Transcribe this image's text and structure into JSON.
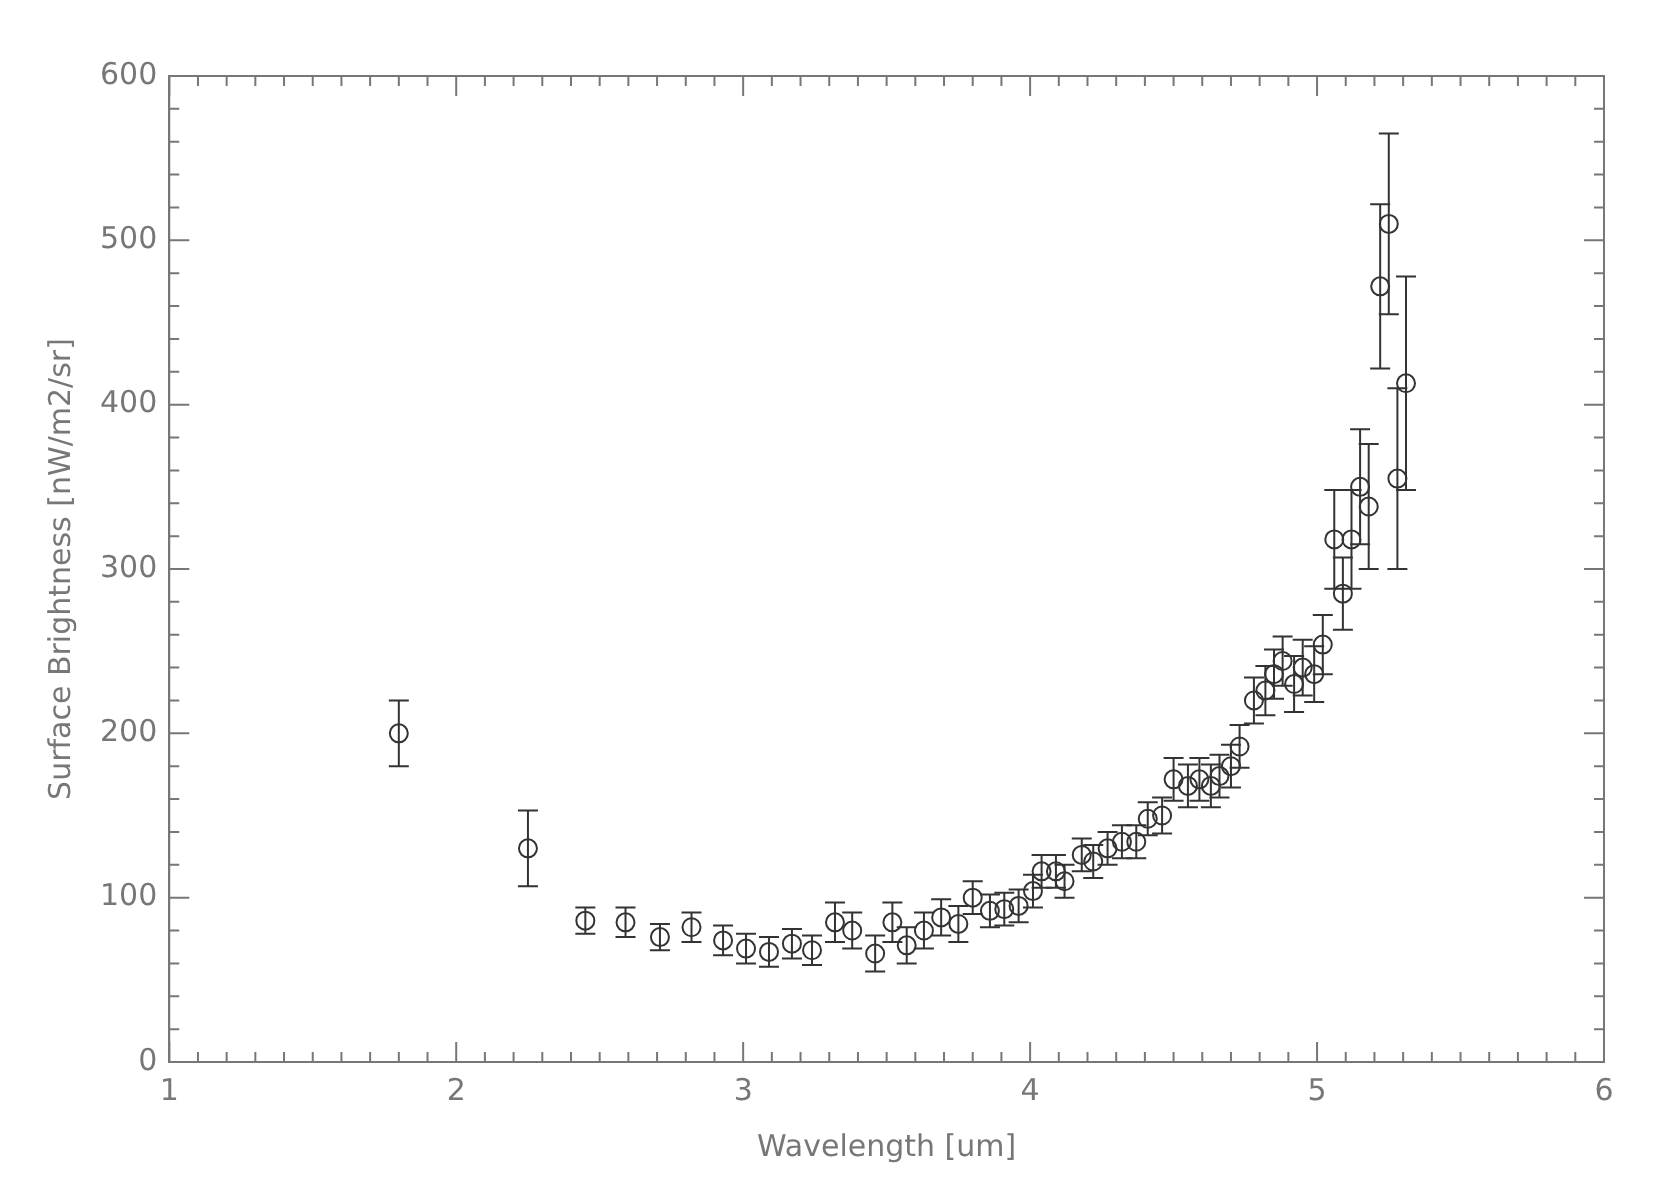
{
  "chart_data": {
    "type": "scatter",
    "xlabel": "Wavelength [um]",
    "ylabel": "Surface Brightness [nW/m2/sr]",
    "xlim": [
      1,
      6
    ],
    "xticks": [
      1,
      2,
      3,
      4,
      5,
      6
    ],
    "ylim": [
      0,
      600
    ],
    "yticks": [
      0,
      100,
      200,
      300,
      400,
      500,
      600
    ],
    "grid": false,
    "legend": false,
    "marker": "circle",
    "series": [
      {
        "color": "#333333",
        "x": [
          1.8,
          2.25,
          2.45,
          2.59,
          2.71,
          2.82,
          2.93,
          3.01,
          3.09,
          3.17,
          3.24,
          3.32,
          3.38,
          3.46,
          3.52,
          3.57,
          3.63,
          3.69,
          3.75,
          3.8,
          3.86,
          3.91,
          3.96,
          4.01,
          4.04,
          4.09,
          4.12,
          4.18,
          4.22,
          4.27,
          4.32,
          4.37,
          4.41,
          4.46,
          4.5,
          4.55,
          4.59,
          4.63,
          4.66,
          4.7,
          4.73,
          4.78,
          4.82,
          4.85,
          4.88,
          4.92,
          4.95,
          4.99,
          5.02,
          5.06,
          5.09,
          5.12,
          5.15,
          5.18,
          5.22,
          5.25,
          5.28,
          5.31
        ],
        "values": [
          200,
          130,
          86,
          85,
          76,
          82,
          74,
          69,
          67,
          72,
          68,
          85,
          80,
          66,
          85,
          71,
          80,
          88,
          84,
          100,
          92,
          93,
          95,
          104,
          116,
          116,
          110,
          126,
          122,
          130,
          134,
          134,
          148,
          150,
          172,
          168,
          172,
          168,
          174,
          180,
          192,
          220,
          226,
          236,
          244,
          230,
          240,
          236,
          254,
          318,
          285,
          318,
          350,
          338,
          472,
          510,
          355,
          413
        ],
        "errors": [
          20,
          23,
          8,
          9,
          8,
          9,
          9,
          9,
          9,
          9,
          9,
          12,
          11,
          11,
          12,
          11,
          11,
          11,
          11,
          10,
          10,
          10,
          10,
          10,
          10,
          10,
          10,
          10,
          10,
          10,
          10,
          10,
          10,
          11,
          13,
          13,
          13,
          13,
          13,
          13,
          13,
          14,
          15,
          15,
          15,
          17,
          17,
          17,
          18,
          30,
          22,
          30,
          35,
          38,
          50,
          55,
          55,
          65
        ]
      }
    ]
  }
}
